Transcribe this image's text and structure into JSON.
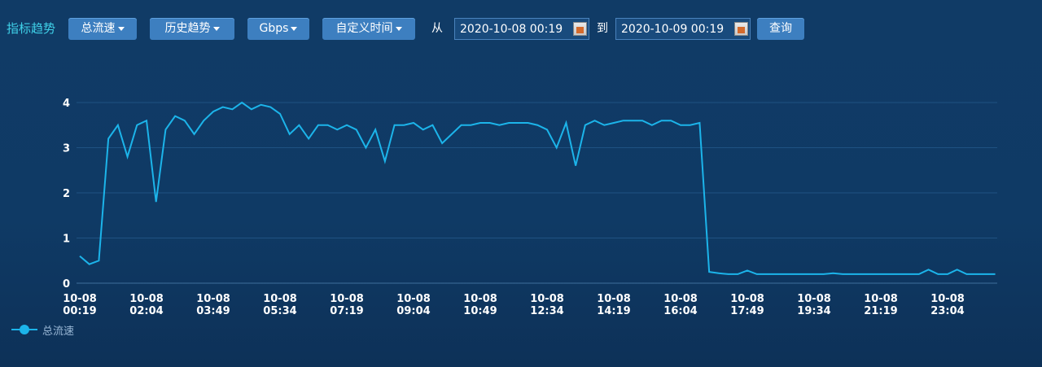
{
  "toolbar": {
    "title": "指标趋势",
    "metric": "总流速",
    "mode": "历史趋势",
    "unit": "Gbps",
    "range": "自定义时间",
    "from_label": "从",
    "from": "2020-10-08 00:19",
    "to_label": "到",
    "to": "2020-10-09 00:19",
    "query": "查询"
  },
  "chart_data": {
    "type": "line",
    "categories": [
      "10-08\n00:19",
      null,
      null,
      null,
      null,
      null,
      null,
      "10-08\n02:04",
      null,
      null,
      null,
      null,
      null,
      null,
      "10-08\n03:49",
      null,
      null,
      null,
      null,
      null,
      null,
      "10-08\n05:34",
      null,
      null,
      null,
      null,
      null,
      null,
      "10-08\n07:19",
      null,
      null,
      null,
      null,
      null,
      null,
      "10-08\n09:04",
      null,
      null,
      null,
      null,
      null,
      null,
      "10-08\n10:49",
      null,
      null,
      null,
      null,
      null,
      null,
      "10-08\n12:34",
      null,
      null,
      null,
      null,
      null,
      null,
      "10-08\n14:19",
      null,
      null,
      null,
      null,
      null,
      null,
      "10-08\n16:04",
      null,
      null,
      null,
      null,
      null,
      null,
      "10-08\n17:49",
      null,
      null,
      null,
      null,
      null,
      null,
      "10-08\n19:34",
      null,
      null,
      null,
      null,
      null,
      null,
      "10-08\n21:19",
      null,
      null,
      null,
      null,
      null,
      null,
      "10-08\n23:04",
      null,
      null,
      null,
      null,
      null
    ],
    "series": [
      {
        "name": "总流速",
        "color": "#1cb4ea",
        "values": [
          0.6,
          0.42,
          0.5,
          3.2,
          3.5,
          2.8,
          3.5,
          3.6,
          1.8,
          3.4,
          3.7,
          3.6,
          3.3,
          3.6,
          3.8,
          3.9,
          3.85,
          4.0,
          3.85,
          3.95,
          3.9,
          3.75,
          3.3,
          3.5,
          3.2,
          3.5,
          3.5,
          3.4,
          3.5,
          3.4,
          3.0,
          3.4,
          2.7,
          3.5,
          3.5,
          3.55,
          3.4,
          3.5,
          3.1,
          3.3,
          3.5,
          3.5,
          3.55,
          3.55,
          3.5,
          3.55,
          3.55,
          3.55,
          3.5,
          3.4,
          3.0,
          3.55,
          2.6,
          3.5,
          3.6,
          3.5,
          3.55,
          3.6,
          3.6,
          3.6,
          3.5,
          3.6,
          3.6,
          3.5,
          3.5,
          3.55,
          0.25,
          0.22,
          0.2,
          0.2,
          0.28,
          0.2,
          0.2,
          0.2,
          0.2,
          0.2,
          0.2,
          0.2,
          0.2,
          0.22,
          0.2,
          0.2,
          0.2,
          0.2,
          0.2,
          0.2,
          0.2,
          0.2,
          0.2,
          0.3,
          0.2,
          0.2,
          0.3,
          0.2,
          0.2,
          0.2,
          0.2
        ]
      }
    ],
    "ylim": [
      0,
      4
    ],
    "yticks": [
      0,
      1,
      2,
      3,
      4
    ],
    "grid": true
  }
}
